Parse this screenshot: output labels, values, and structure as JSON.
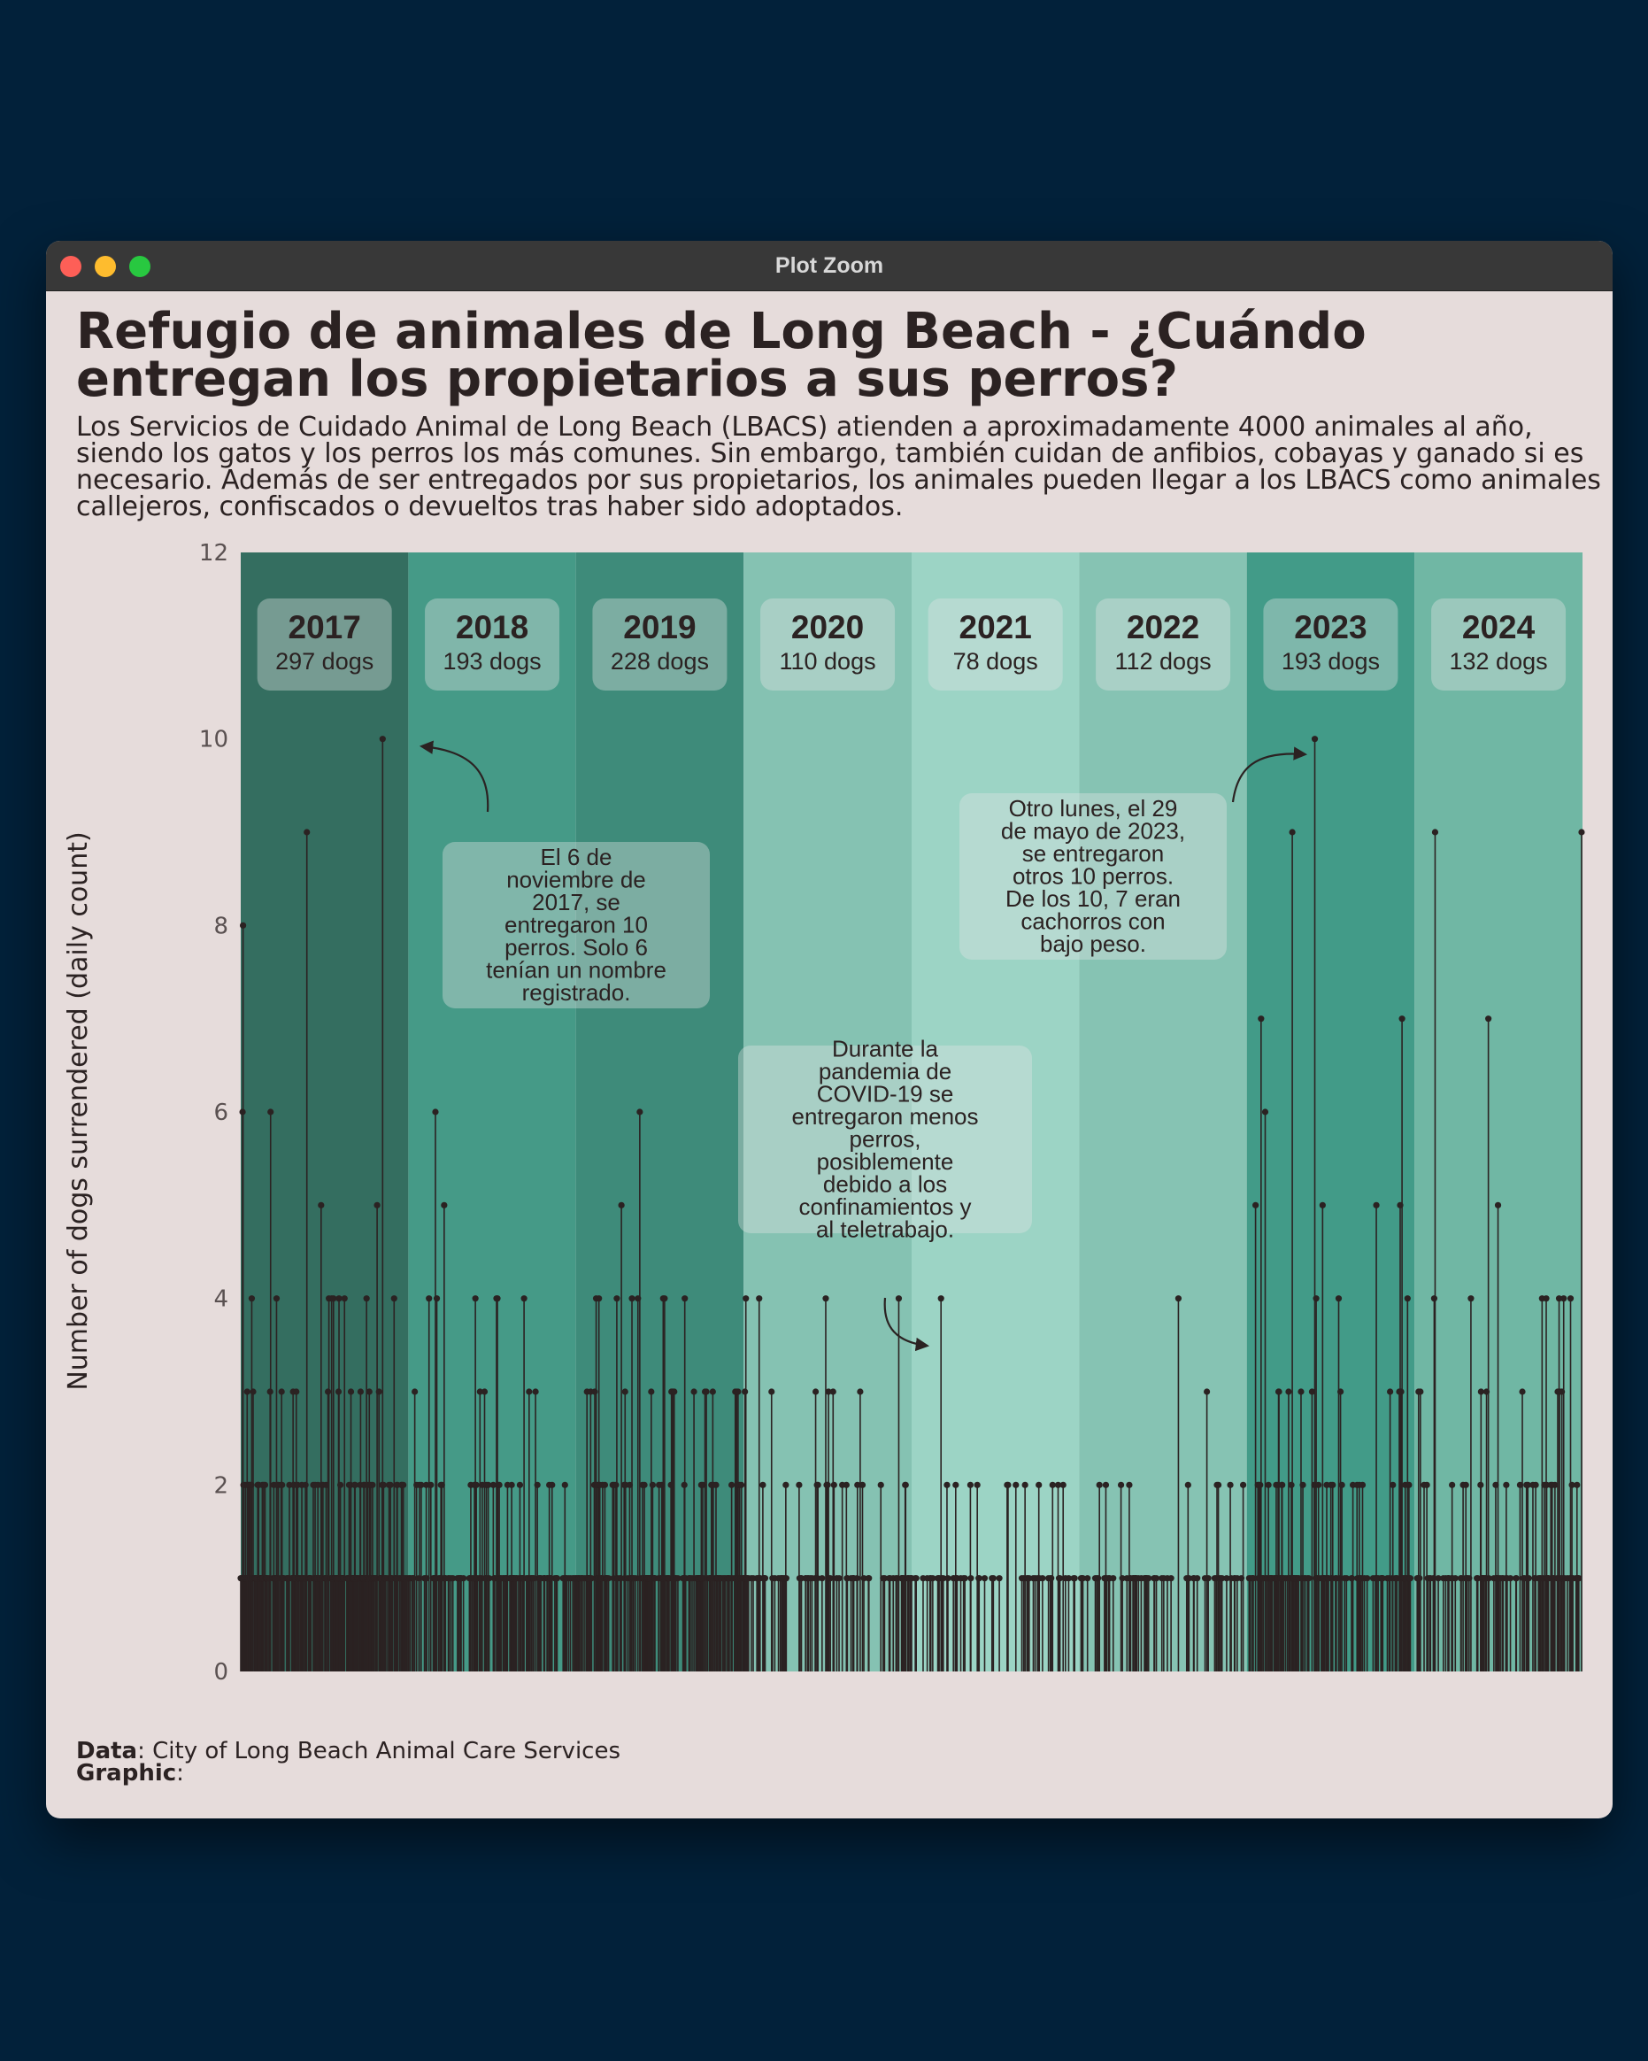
{
  "window": {
    "title": "Plot Zoom",
    "controls": [
      "close",
      "minimize",
      "zoom"
    ]
  },
  "caption": {
    "data_label": "Data",
    "data_text": ": City of Long Beach Animal Care Services",
    "graphic_label": "Graphic",
    "graphic_text": ":"
  },
  "colors": {
    "background": "#e6dcdb",
    "text": "#2b2222",
    "bars": "#2b2222",
    "year_bands": [
      "#346e60",
      "#459a87",
      "#3e8b7a",
      "#85c2b2",
      "#9cd4c5",
      "#86c3b3",
      "#429b88",
      "#70b7a4"
    ],
    "label_box": "rgba(225,230,228,0.38)"
  },
  "chart_data": {
    "type": "bar",
    "title": "Refugio de animales de Long Beach - ¿Cuándo entregan los propietarios a sus perros?",
    "subtitle": "Los Servicios de Cuidado Animal de Long Beach (LBACS) atienden a aproximadamente 4000 animales al año, siendo los gatos y los perros los más comunes. Sin embargo, también cuidan de anfibios, cobayas y ganado si es necesario. Además de ser entregados por sus propietarios, los animales pueden llegar a los LBACS como animales callejeros, confiscados o devueltos tras haber sido adoptados.",
    "xlabel": "",
    "ylabel": "Number of dogs surrendered (daily count)",
    "ylim": [
      0,
      12
    ],
    "yticks": [
      0,
      2,
      4,
      6,
      8,
      10,
      12
    ],
    "grid": false,
    "legend": "none",
    "style": "lollipop (vertical lines with point markers), one per day",
    "xlim": [
      "2017-01-01",
      "2025-01-01"
    ],
    "years": [
      {
        "year": "2017",
        "total_label": "297 dogs"
      },
      {
        "year": "2018",
        "total_label": "193 dogs"
      },
      {
        "year": "2019",
        "total_label": "228 dogs"
      },
      {
        "year": "2020",
        "total_label": "110 dogs"
      },
      {
        "year": "2021",
        "total_label": "78 dogs"
      },
      {
        "year": "2022",
        "total_label": "112 dogs"
      },
      {
        "year": "2023",
        "total_label": "193 dogs"
      },
      {
        "year": "2024",
        "total_label": "132 dogs"
      }
    ],
    "annotations": [
      {
        "text": "El 6 de noviembre de 2017, se entregaron 10 perros. Solo 6 tenían un nombre registrado.",
        "points_to": "2017-11-06"
      },
      {
        "text": "Durante la pandemia de COVID-19 se entregaron menos perros, posiblemente debido a los confinamientos y al teletrabajo.",
        "points_to": "2020-12-15"
      },
      {
        "text": "Otro lunes, el 29 de mayo de 2023, se entregaron otros 10 perros. De los 10, 7 eran cachorros con bajo peso.",
        "points_to": "2023-05-29"
      }
    ],
    "notable_points": [
      {
        "date": "2017-01-06",
        "value": 8
      },
      {
        "date": "2017-01-05",
        "value": 6
      },
      {
        "date": "2017-03-07",
        "value": 6
      },
      {
        "date": "2017-05-25",
        "value": 9
      },
      {
        "date": "2017-06-25",
        "value": 5
      },
      {
        "date": "2017-10-25",
        "value": 5
      },
      {
        "date": "2017-11-06",
        "value": 10
      },
      {
        "date": "2018-03-01",
        "value": 6
      },
      {
        "date": "2018-03-20",
        "value": 5
      },
      {
        "date": "2018-09-10",
        "value": 4
      },
      {
        "date": "2019-04-10",
        "value": 5
      },
      {
        "date": "2019-05-20",
        "value": 6
      },
      {
        "date": "2019-02-20",
        "value": 4
      },
      {
        "date": "2023-01-20",
        "value": 5
      },
      {
        "date": "2023-02-01",
        "value": 7
      },
      {
        "date": "2023-02-10",
        "value": 6
      },
      {
        "date": "2023-04-10",
        "value": 9
      },
      {
        "date": "2023-05-29",
        "value": 10
      },
      {
        "date": "2023-06-15",
        "value": 5
      },
      {
        "date": "2023-10-10",
        "value": 5
      },
      {
        "date": "2023-12-01",
        "value": 5
      },
      {
        "date": "2023-12-05",
        "value": 7
      },
      {
        "date": "2024-02-15",
        "value": 9
      },
      {
        "date": "2024-06-10",
        "value": 7
      },
      {
        "date": "2024-07-01",
        "value": 5
      },
      {
        "date": "2024-12-30",
        "value": 9
      }
    ]
  }
}
